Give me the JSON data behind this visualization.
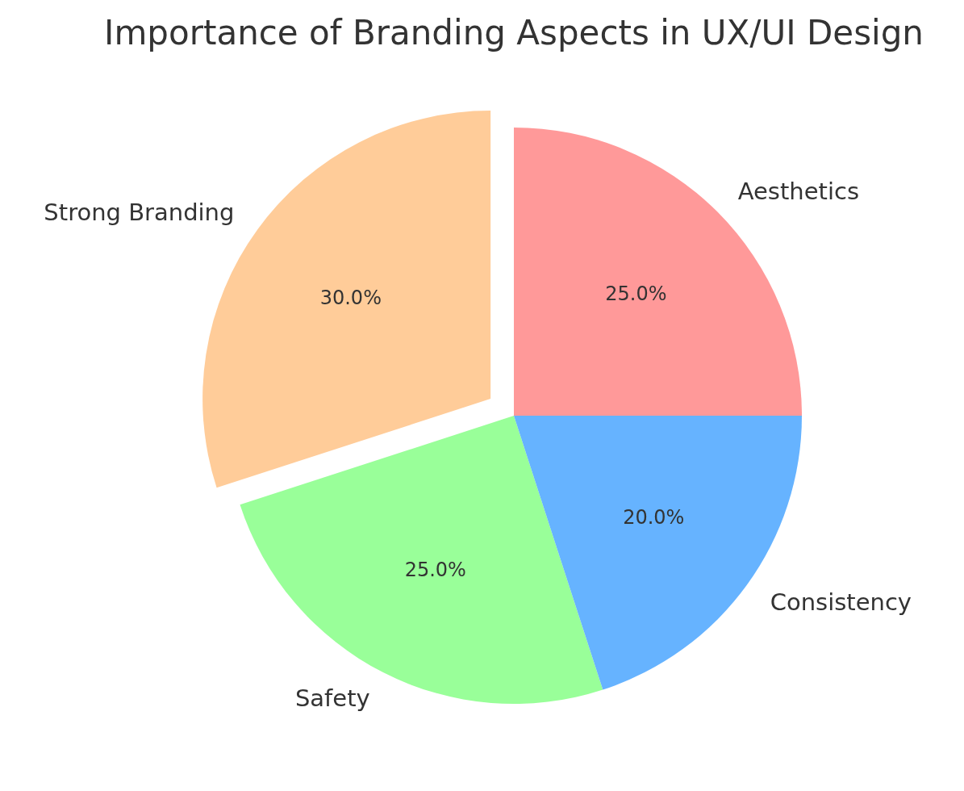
{
  "chart_data": {
    "type": "pie",
    "title": "Importance of Branding Aspects in UX/UI Design",
    "categories": [
      "Aesthetics",
      "Strong Branding",
      "Safety",
      "Consistency"
    ],
    "values": [
      25,
      30,
      25,
      20
    ],
    "colors": [
      "#ff9999",
      "#ffcc99",
      "#99ff99",
      "#66b3ff"
    ],
    "value_labels": [
      "25.0%",
      "30.0%",
      "25.0%",
      "20.0%"
    ]
  }
}
